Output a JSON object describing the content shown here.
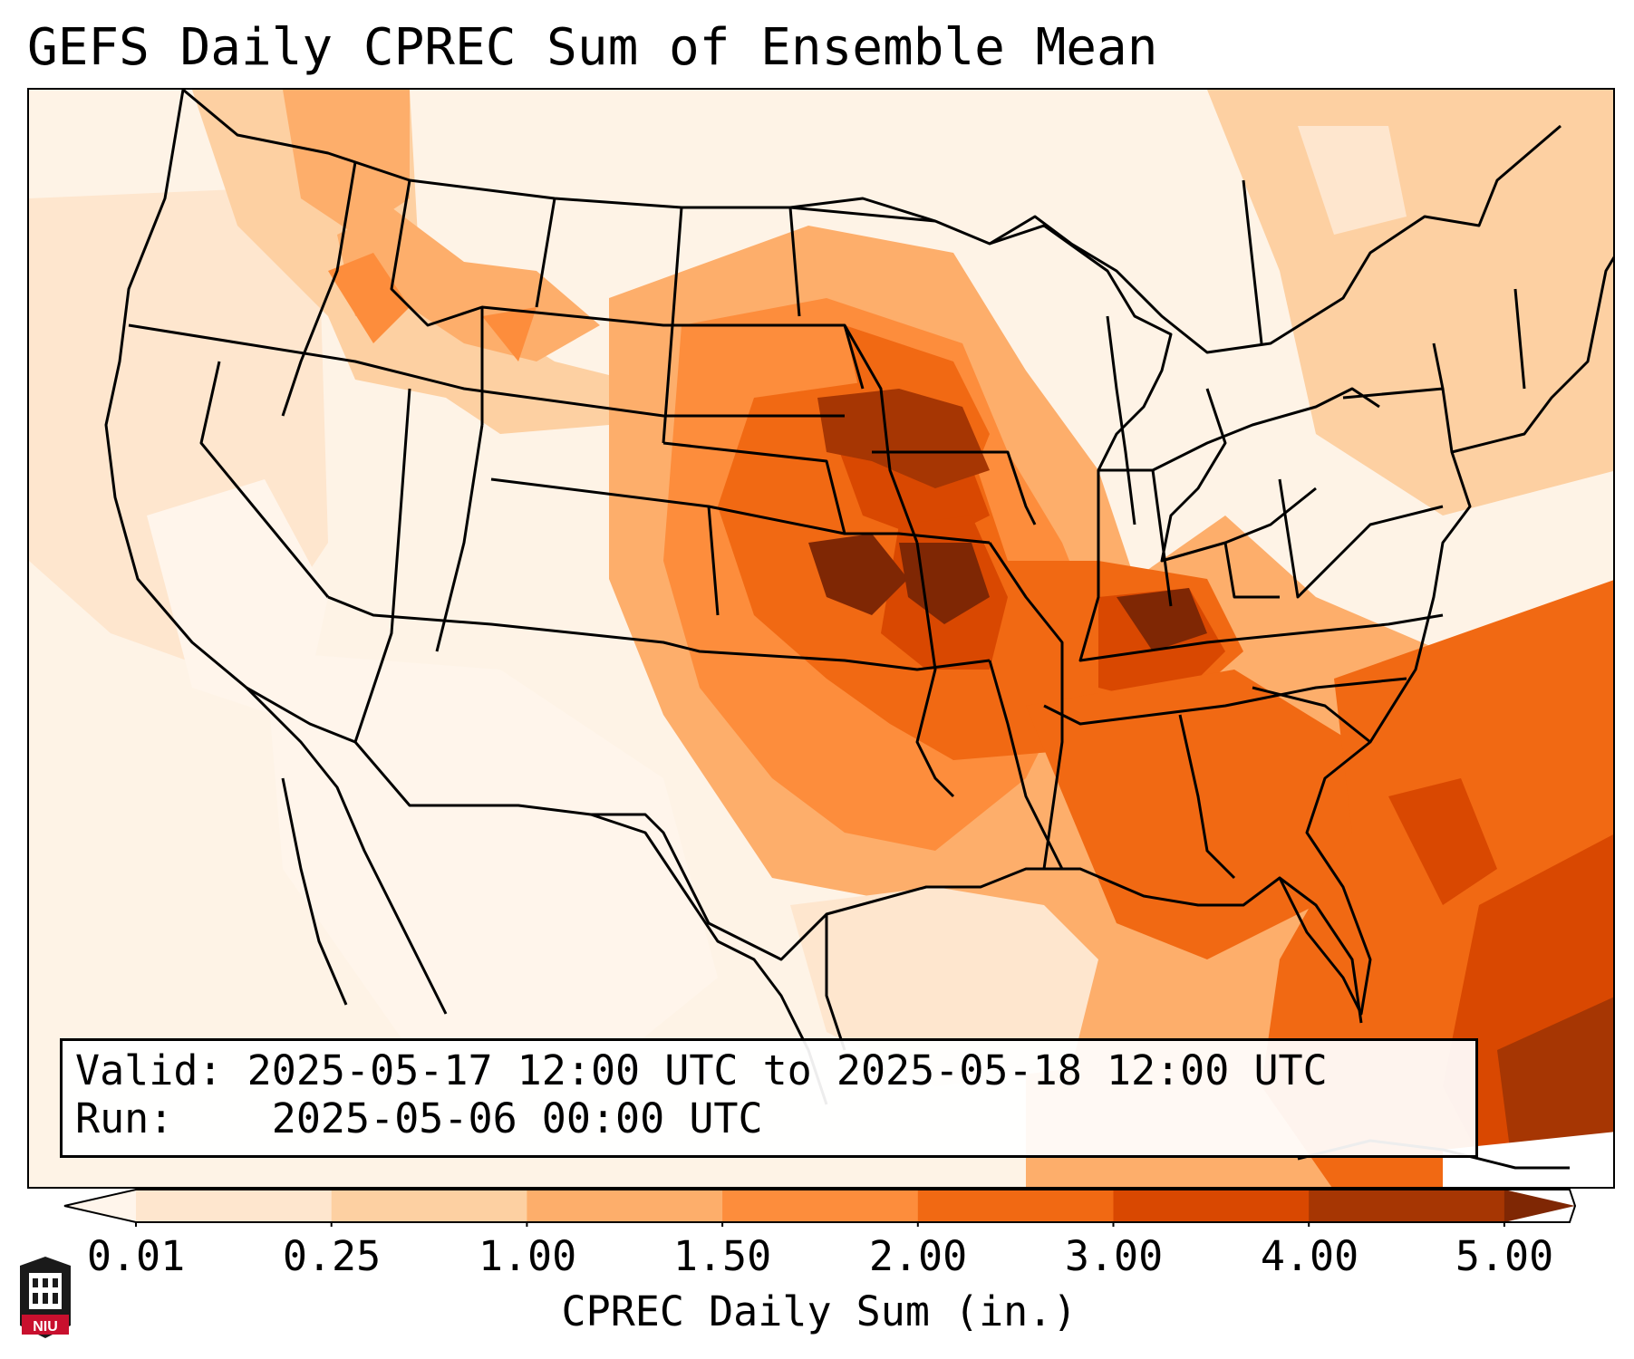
{
  "title": "GEFS Daily CPREC Sum of Ensemble Mean",
  "info": {
    "valid_label": "Valid:",
    "valid_value": "2025-05-17 12:00 UTC to 2025-05-18 12:00 UTC",
    "run_label": "Run:",
    "run_value": "2025-05-06 00:00 UTC"
  },
  "colorbar": {
    "label": "CPREC Daily Sum (in.)",
    "ticks": [
      "0.01",
      "0.25",
      "1.00",
      "1.50",
      "2.00",
      "3.00",
      "4.00",
      "5.00"
    ],
    "colors": [
      "#fff5eb",
      "#fee6ce",
      "#fdd0a2",
      "#fdae6b",
      "#fd8d3c",
      "#f16913",
      "#d94801",
      "#a63603",
      "#7f2704"
    ]
  },
  "map": {
    "type": "filled precipitation map",
    "region": "Contiguous United States",
    "colors": {
      "background": "#fef3e6",
      "boundary": "#000000"
    }
  },
  "logo": {
    "text": "NIU",
    "icon": "niu-logo-icon"
  }
}
